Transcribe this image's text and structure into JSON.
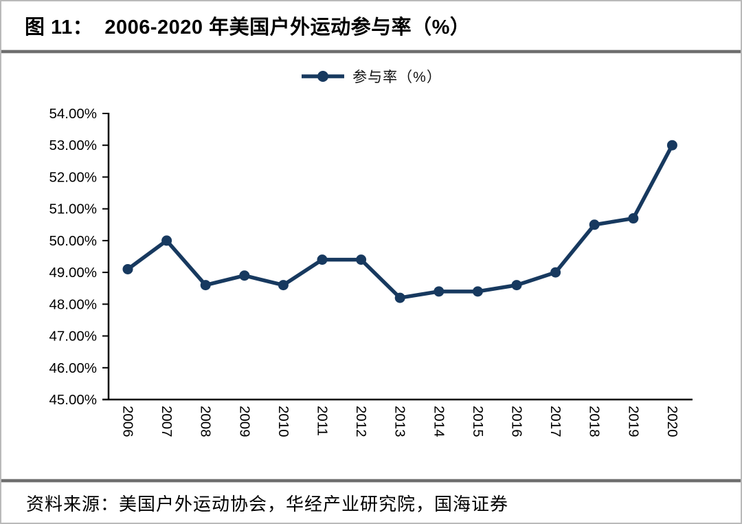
{
  "header": {
    "title": "图 11：  2006-2020 年美国户外运动参与率（%）"
  },
  "legend": {
    "label": "参与率（%）"
  },
  "footer": {
    "source": "资料来源：美国户外运动协会，华经产业研究院，国海证券"
  },
  "colors": {
    "line": "#17395f",
    "axis": "#000000",
    "text": "#000000"
  },
  "chart_data": {
    "type": "line",
    "title": "2006-2020 年美国户外运动参与率（%）",
    "categories": [
      "2006",
      "2007",
      "2008",
      "2009",
      "2010",
      "2011",
      "2012",
      "2013",
      "2014",
      "2015",
      "2016",
      "2017",
      "2018",
      "2019",
      "2020"
    ],
    "series": [
      {
        "name": "参与率（%）",
        "values": [
          49.1,
          50.0,
          48.6,
          48.9,
          48.6,
          49.4,
          49.4,
          48.2,
          48.4,
          48.4,
          48.6,
          49.0,
          50.5,
          50.7,
          53.0
        ]
      }
    ],
    "xlabel": "",
    "ylabel": "",
    "ylim": [
      45,
      54
    ],
    "y_tick_step": 1,
    "y_tick_labels": [
      "45.00%",
      "46.00%",
      "47.00%",
      "48.00%",
      "49.00%",
      "50.00%",
      "51.00%",
      "52.00%",
      "53.00%",
      "54.00%"
    ],
    "grid": false,
    "legend_position": "top-center",
    "line_color": "#17395f",
    "marker": "circle"
  }
}
